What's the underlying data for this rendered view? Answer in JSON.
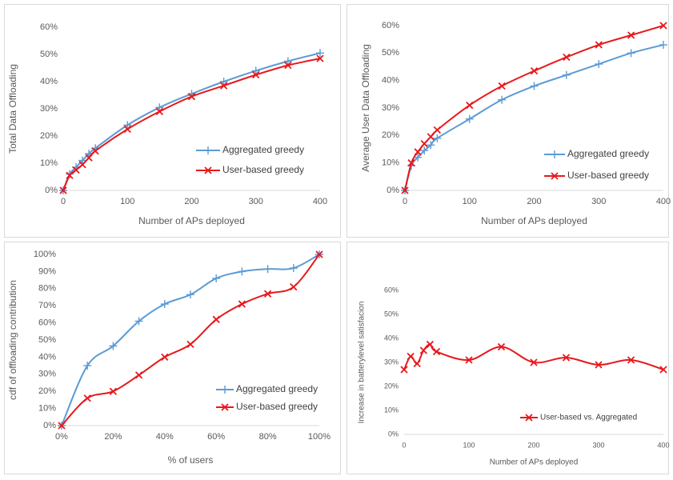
{
  "chart_data": [
    {
      "type": "line",
      "xlabel": "Number of APs deployed",
      "ylabel": "Total Data Offloading",
      "x": [
        0,
        10,
        20,
        30,
        40,
        50,
        100,
        150,
        200,
        250,
        300,
        350,
        400
      ],
      "series": [
        {
          "name": "Aggregated greedy",
          "color": "#5b9bd5",
          "marker": "+",
          "values": [
            0,
            6,
            8.5,
            11,
            13.5,
            15.5,
            24,
            30.5,
            35.5,
            40,
            44,
            47.5,
            50.5
          ]
        },
        {
          "name": "User-based greedy",
          "color": "#e8181c",
          "marker": "x",
          "values": [
            0,
            5.5,
            7.5,
            9.5,
            12,
            14.5,
            22.5,
            29,
            34.5,
            38.5,
            42.5,
            46,
            48.5
          ]
        }
      ],
      "xlim": [
        0,
        400
      ],
      "xticks": [
        0,
        100,
        200,
        300,
        400
      ],
      "ylim": [
        0,
        60
      ],
      "yticks": [
        {
          "value": 0,
          "label": "0%"
        },
        {
          "value": 10,
          "label": "10%"
        },
        {
          "value": 20,
          "label": "20%"
        },
        {
          "value": 30,
          "label": "30%"
        },
        {
          "value": 40,
          "label": "40%"
        },
        {
          "value": 50,
          "label": "50%"
        },
        {
          "value": 60,
          "label": "60%"
        }
      ],
      "legend": "lower right"
    },
    {
      "type": "line",
      "xlabel": "Number of APs deployed",
      "ylabel": "Average User Data Offloading",
      "x": [
        0,
        10,
        20,
        30,
        40,
        50,
        100,
        150,
        200,
        250,
        300,
        350,
        400
      ],
      "series": [
        {
          "name": "Aggregated greedy",
          "color": "#5b9bd5",
          "marker": "+",
          "values": [
            0,
            9,
            12,
            14.5,
            16.5,
            19,
            26,
            33,
            38,
            42,
            46,
            50,
            53
          ]
        },
        {
          "name": "User-based greedy",
          "color": "#e8181c",
          "marker": "x",
          "values": [
            0,
            10,
            14,
            17,
            19.5,
            22,
            31,
            38,
            43.5,
            48.5,
            53,
            56.5,
            60
          ]
        }
      ],
      "xlim": [
        0,
        400
      ],
      "xticks": [
        0,
        100,
        200,
        300,
        400
      ],
      "ylim": [
        0,
        60
      ],
      "yticks": [
        {
          "value": 0,
          "label": "0%"
        },
        {
          "value": 10,
          "label": "10%"
        },
        {
          "value": 20,
          "label": "20%"
        },
        {
          "value": 30,
          "label": "30%"
        },
        {
          "value": 40,
          "label": "40%"
        },
        {
          "value": 50,
          "label": "50%"
        },
        {
          "value": 60,
          "label": "60%"
        }
      ],
      "legend": "lower right"
    },
    {
      "type": "line",
      "xlabel": "% of users",
      "ylabel": "cdf of offloading contribution",
      "x": [
        0,
        10,
        20,
        30,
        40,
        50,
        60,
        70,
        80,
        90,
        100
      ],
      "series": [
        {
          "name": "Aggregated greedy",
          "color": "#5b9bd5",
          "marker": "+",
          "values": [
            0,
            35,
            46.5,
            61,
            71,
            76.5,
            86,
            90,
            91.5,
            92,
            100
          ]
        },
        {
          "name": "User-based greedy",
          "color": "#e8181c",
          "marker": "x",
          "values": [
            0,
            16,
            20,
            29.5,
            40,
            47.5,
            62,
            71,
            77,
            81,
            100
          ]
        }
      ],
      "xlim": [
        0,
        100
      ],
      "xticks": [
        {
          "value": 0,
          "label": "0%"
        },
        {
          "value": 20,
          "label": "20%"
        },
        {
          "value": 40,
          "label": "40%"
        },
        {
          "value": 60,
          "label": "60%"
        },
        {
          "value": 80,
          "label": "80%"
        },
        {
          "value": 100,
          "label": "100%"
        }
      ],
      "ylim": [
        0,
        100
      ],
      "yticks": [
        {
          "value": 0,
          "label": "0%"
        },
        {
          "value": 10,
          "label": "10%"
        },
        {
          "value": 20,
          "label": "20%"
        },
        {
          "value": 30,
          "label": "30%"
        },
        {
          "value": 40,
          "label": "40%"
        },
        {
          "value": 50,
          "label": "50%"
        },
        {
          "value": 60,
          "label": "60%"
        },
        {
          "value": 70,
          "label": "70%"
        },
        {
          "value": 80,
          "label": "80%"
        },
        {
          "value": 90,
          "label": "90%"
        },
        {
          "value": 100,
          "label": "100%"
        }
      ],
      "legend": "lower right"
    },
    {
      "type": "line",
      "xlabel": "Number of APs deployed",
      "ylabel": "Increase in batterylevel satisfacion",
      "x": [
        0,
        10,
        20,
        30,
        40,
        50,
        100,
        150,
        200,
        250,
        300,
        350,
        400
      ],
      "series": [
        {
          "name": "User-based vs. Aggregated",
          "color": "#e8181c",
          "marker": "x",
          "values": [
            27,
            32.5,
            29.5,
            35,
            37.5,
            34.5,
            31,
            36.5,
            30,
            32,
            29,
            31,
            27
          ]
        }
      ],
      "xlim": [
        0,
        400
      ],
      "xticks": [
        0,
        100,
        200,
        300,
        400
      ],
      "ylim": [
        0,
        60
      ],
      "yticks": [
        {
          "value": 0,
          "label": "0%"
        },
        {
          "value": 10,
          "label": "10%"
        },
        {
          "value": 20,
          "label": "20%"
        },
        {
          "value": 30,
          "label": "30%"
        },
        {
          "value": 40,
          "label": "40%"
        },
        {
          "value": 50,
          "label": "50%"
        },
        {
          "value": 60,
          "label": "60%"
        }
      ],
      "legend": "lower right"
    }
  ]
}
